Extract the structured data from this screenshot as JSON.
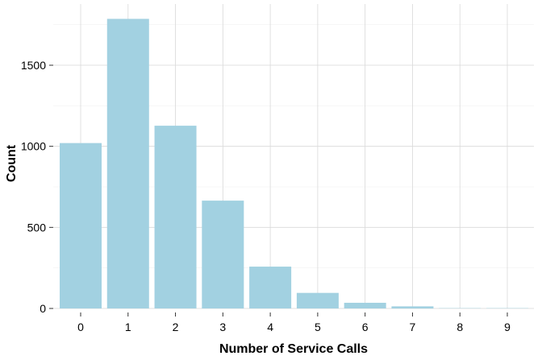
{
  "chart_data": {
    "type": "bar",
    "title": "",
    "xlabel": "Number of Service Calls",
    "ylabel": "Count",
    "categories": [
      "0",
      "1",
      "2",
      "3",
      "4",
      "5",
      "6",
      "7",
      "8",
      "9"
    ],
    "values": [
      1020,
      1786,
      1127,
      665,
      258,
      96,
      35,
      13,
      2,
      2
    ],
    "ylim": [
      0,
      1800
    ],
    "yticks": [
      "0",
      "500",
      "1000",
      "1500"
    ],
    "ytick_values": [
      0,
      500,
      1000,
      1500
    ],
    "grid": true,
    "bar_color": "#a2d1e1",
    "background": "#ffffff",
    "grid_color": "#d9d9d9"
  }
}
